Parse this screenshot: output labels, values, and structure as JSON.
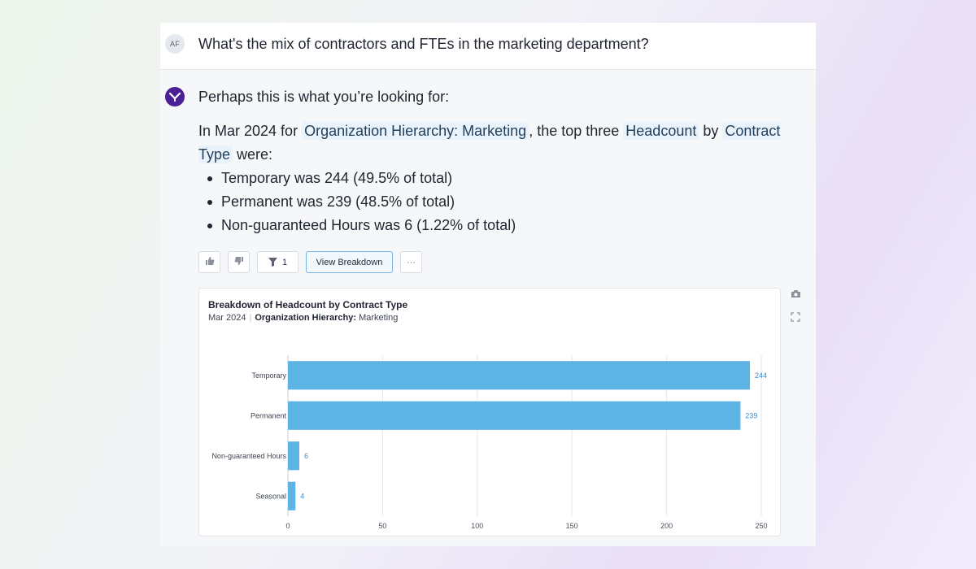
{
  "question": {
    "avatar_initials": "AF",
    "text": "What's the mix of contractors and FTEs in the marketing department?"
  },
  "answer": {
    "intro": "Perhaps this is what you’re looking for:",
    "para_prefix": "In Mar 2024 for ",
    "chip_org": "Organization Hierarchy: Marketing",
    "para_mid": ", the top three ",
    "chip_metric": "Headcount",
    "para_by": " by ",
    "chip_dim": "Contract Type",
    "para_suffix": " were:",
    "bullets": [
      "Temporary was 244 (49.5% of total)",
      "Permanent was 239 (48.5% of total)",
      "Non-guaranteed Hours was 6 (1.22% of total)"
    ]
  },
  "toolbar": {
    "thumbs_up_icon": "thumbs-up-icon",
    "thumbs_down_icon": "thumbs-down-icon",
    "filter_icon": "filter-icon",
    "filter_count": "1",
    "view_breakdown_label": "View Breakdown",
    "more_label": "···"
  },
  "chart_card": {
    "title": "Breakdown of Headcount by Contract Type",
    "sub_date": "Mar 2024",
    "sub_key": "Organization Hierarchy:",
    "sub_value": "Marketing"
  },
  "side_icons": [
    "camera-icon",
    "expand-icon"
  ],
  "colors": {
    "bar": "#5db3e3",
    "value_label": "#3a8fd0",
    "bot_avatar": "#4b1f96",
    "chip_bg": "#eaf3fb"
  },
  "chart_data": {
    "type": "bar",
    "orientation": "horizontal",
    "title": "Breakdown of Headcount by Contract Type",
    "categories": [
      "Temporary",
      "Permanent",
      "Non-guaranteed Hours",
      "Seasonal"
    ],
    "values": [
      244,
      239,
      6,
      4
    ],
    "x_ticks": [
      0,
      50,
      100,
      150,
      200,
      250
    ],
    "xlim": [
      0,
      250
    ],
    "xlabel": "",
    "ylabel": "",
    "grid": true,
    "data_labels": true
  }
}
